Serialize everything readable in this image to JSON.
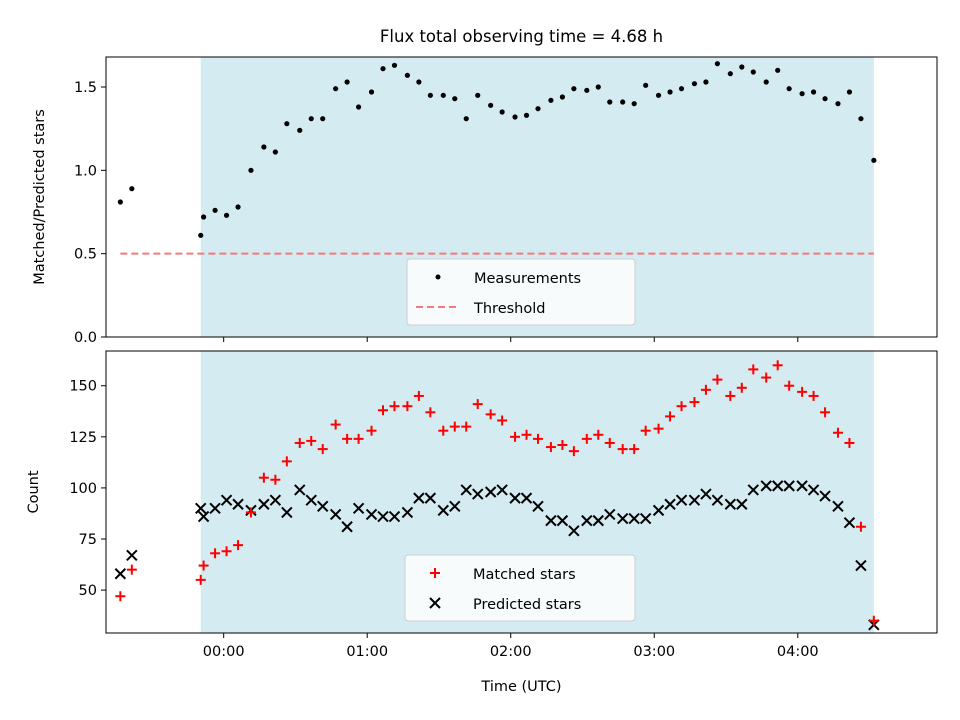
{
  "title": "Flux total observing time = 4.68 h",
  "colors": {
    "shade": "#d4ebf1",
    "threshold": "#f47a7a",
    "matched": "#ff0000",
    "predicted": "#000000",
    "dots": "#000000"
  },
  "chart_data": [
    {
      "type": "scatter",
      "name": "ratio-panel",
      "ylabel": "Matched/Predicted stars",
      "xlim": [
        -0.82,
        4.97
      ],
      "ylim": [
        0,
        1.68
      ],
      "yticks": [
        0.0,
        0.5,
        1.0,
        1.5
      ],
      "ytick_labels": [
        "0.0",
        "0.5",
        "1.0",
        "1.5"
      ],
      "shaded_span": [
        -0.16,
        4.53
      ],
      "series": [
        {
          "name": "Measurements",
          "x": [
            -0.72,
            -0.64,
            -0.16,
            -0.14,
            -0.06,
            0.02,
            0.1,
            0.19,
            0.28,
            0.36,
            0.44,
            0.53,
            0.61,
            0.69,
            0.78,
            0.86,
            0.94,
            1.03,
            1.11,
            1.19,
            1.28,
            1.36,
            1.44,
            1.53,
            1.61,
            1.69,
            1.77,
            1.86,
            1.94,
            2.03,
            2.11,
            2.19,
            2.28,
            2.36,
            2.44,
            2.53,
            2.61,
            2.69,
            2.78,
            2.86,
            2.94,
            3.03,
            3.11,
            3.19,
            3.28,
            3.36,
            3.44,
            3.53,
            3.61,
            3.69,
            3.78,
            3.86,
            3.94,
            4.03,
            4.11,
            4.19,
            4.28,
            4.36,
            4.44,
            4.53
          ],
          "y": [
            0.81,
            0.89,
            0.61,
            0.72,
            0.76,
            0.73,
            0.78,
            1.0,
            1.14,
            1.11,
            1.28,
            1.24,
            1.31,
            1.31,
            1.49,
            1.53,
            1.38,
            1.47,
            1.61,
            1.63,
            1.57,
            1.53,
            1.45,
            1.45,
            1.43,
            1.31,
            1.45,
            1.39,
            1.35,
            1.32,
            1.33,
            1.37,
            1.42,
            1.44,
            1.49,
            1.48,
            1.5,
            1.41,
            1.41,
            1.4,
            1.51,
            1.45,
            1.47,
            1.49,
            1.52,
            1.53,
            1.64,
            1.58,
            1.62,
            1.59,
            1.53,
            1.6,
            1.49,
            1.46,
            1.47,
            1.43,
            1.4,
            1.47,
            1.31,
            1.06
          ]
        },
        {
          "name": "Threshold",
          "x": [
            -0.72,
            4.53
          ],
          "y": [
            0.5,
            0.5
          ]
        }
      ]
    },
    {
      "type": "scatter",
      "name": "count-panel",
      "ylabel": "Count",
      "xlabel": "Time (UTC)",
      "xlim": [
        -0.82,
        4.97
      ],
      "ylim": [
        29,
        167
      ],
      "yticks": [
        50,
        75,
        100,
        125,
        150
      ],
      "ytick_labels": [
        "50",
        "75",
        "100",
        "125",
        "150"
      ],
      "xticks": [
        0,
        1,
        2,
        3,
        4
      ],
      "xtick_labels": [
        "00:00",
        "01:00",
        "02:00",
        "03:00",
        "04:00"
      ],
      "shaded_span": [
        -0.16,
        4.53
      ],
      "series": [
        {
          "name": "Matched stars",
          "x": [
            -0.72,
            -0.64,
            -0.16,
            -0.14,
            -0.06,
            0.02,
            0.1,
            0.19,
            0.28,
            0.36,
            0.44,
            0.53,
            0.61,
            0.69,
            0.78,
            0.86,
            0.94,
            1.03,
            1.11,
            1.19,
            1.28,
            1.36,
            1.44,
            1.53,
            1.61,
            1.69,
            1.77,
            1.86,
            1.94,
            2.03,
            2.11,
            2.19,
            2.28,
            2.36,
            2.44,
            2.53,
            2.61,
            2.69,
            2.78,
            2.86,
            2.94,
            3.03,
            3.11,
            3.19,
            3.28,
            3.36,
            3.44,
            3.53,
            3.61,
            3.69,
            3.78,
            3.86,
            3.94,
            4.03,
            4.11,
            4.19,
            4.28,
            4.36,
            4.44,
            4.53
          ],
          "y": [
            47,
            60,
            55,
            62,
            68,
            69,
            72,
            88,
            105,
            104,
            113,
            122,
            123,
            119,
            131,
            124,
            124,
            128,
            138,
            140,
            140,
            145,
            137,
            128,
            130,
            130,
            141,
            136,
            133,
            125,
            126,
            124,
            120,
            121,
            118,
            124,
            126,
            122,
            119,
            119,
            128,
            129,
            135,
            140,
            142,
            148,
            153,
            145,
            149,
            158,
            154,
            160,
            150,
            147,
            145,
            137,
            127,
            122,
            81,
            35
          ]
        },
        {
          "name": "Predicted stars",
          "x": [
            -0.72,
            -0.64,
            -0.16,
            -0.14,
            -0.06,
            0.02,
            0.1,
            0.19,
            0.28,
            0.36,
            0.44,
            0.53,
            0.61,
            0.69,
            0.78,
            0.86,
            0.94,
            1.03,
            1.11,
            1.19,
            1.28,
            1.36,
            1.44,
            1.53,
            1.61,
            1.69,
            1.77,
            1.86,
            1.94,
            2.03,
            2.11,
            2.19,
            2.28,
            2.36,
            2.44,
            2.53,
            2.61,
            2.69,
            2.78,
            2.86,
            2.94,
            3.03,
            3.11,
            3.19,
            3.28,
            3.36,
            3.44,
            3.53,
            3.61,
            3.69,
            3.78,
            3.86,
            3.94,
            4.03,
            4.11,
            4.19,
            4.28,
            4.36,
            4.44,
            4.53
          ],
          "y": [
            58,
            67,
            90,
            86,
            90,
            94,
            92,
            89,
            92,
            94,
            88,
            99,
            94,
            91,
            87,
            81,
            90,
            87,
            86,
            86,
            88,
            95,
            95,
            89,
            91,
            99,
            97,
            98,
            99,
            95,
            95,
            91,
            84,
            84,
            79,
            84,
            84,
            87,
            85,
            85,
            85,
            89,
            92,
            94,
            94,
            97,
            94,
            92,
            92,
            99,
            101,
            101,
            101,
            101,
            99,
            96,
            91,
            83,
            62,
            33
          ]
        }
      ]
    }
  ]
}
